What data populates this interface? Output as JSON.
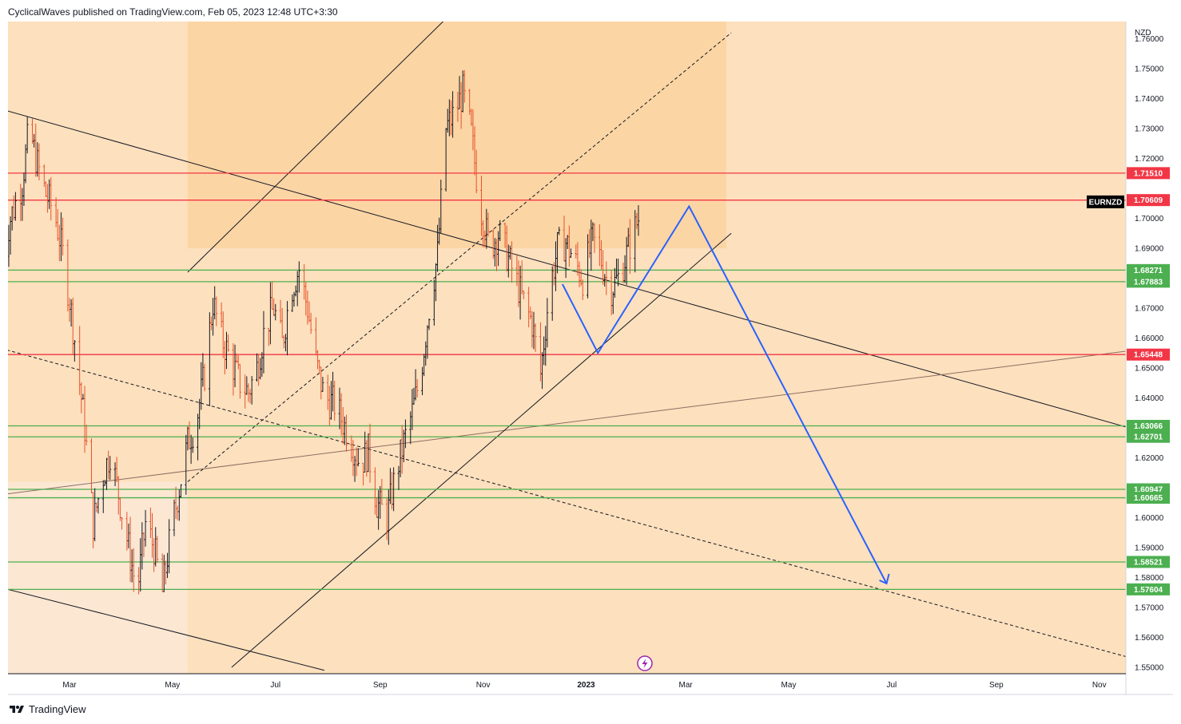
{
  "header": {
    "text": "CyclicalWaves published on TradingView.com, Feb 05, 2023 12:48 UTC+3:30"
  },
  "footer": {
    "brand": "TradingView",
    "logo_icon": "tradingview-logo-icon"
  },
  "chart_data": {
    "type": "candlestick",
    "symbol": "EURNZD",
    "currency": "NZD",
    "y_axis": {
      "min": 1.55,
      "max": 1.76,
      "ticks": [
        "1.55000",
        "1.56000",
        "1.57000",
        "1.58000",
        "1.59000",
        "1.60000",
        "1.62000",
        "1.64000",
        "1.65000",
        "1.66000",
        "1.67000",
        "1.69000",
        "1.70000",
        "1.72000",
        "1.73000",
        "1.74000",
        "1.75000",
        "1.76000"
      ]
    },
    "x_axis": {
      "ticks": [
        "Mar",
        "May",
        "Jul",
        "Sep",
        "Nov",
        "2023",
        "Mar",
        "May",
        "Jul",
        "Sep",
        "Nov"
      ],
      "tick_years": [
        2022,
        2022,
        2022,
        2022,
        2022,
        2023,
        2023,
        2023,
        2023,
        2023,
        2023
      ],
      "tick_months": [
        3,
        5,
        7,
        9,
        11,
        1,
        3,
        5,
        7,
        9,
        11
      ]
    },
    "resistance_levels": [
      {
        "price": 1.7151,
        "label": "1.71510"
      },
      {
        "price": 1.70609,
        "label": "1.70609"
      },
      {
        "price": 1.65448,
        "label": "1.65448"
      }
    ],
    "support_levels": [
      {
        "price": 1.68271,
        "label": "1.68271"
      },
      {
        "price": 1.67883,
        "label": "1.67883"
      },
      {
        "price": 1.63066,
        "label": "1.63066"
      },
      {
        "price": 1.62701,
        "label": "1.62701"
      },
      {
        "price": 1.60947,
        "label": "1.60947"
      },
      {
        "price": 1.60665,
        "label": "1.60665"
      },
      {
        "price": 1.58521,
        "label": "1.58521"
      },
      {
        "price": 1.57604,
        "label": "1.57604"
      }
    ],
    "symbol_label_price": 1.7055,
    "close_series": [
      [
        "2022-01-20",
        1.688
      ],
      [
        "2022-01-25",
        1.7
      ],
      [
        "2022-02-01",
        1.712
      ],
      [
        "2022-02-05",
        1.73
      ],
      [
        "2022-02-10",
        1.718
      ],
      [
        "2022-02-15",
        1.708
      ],
      [
        "2022-02-20",
        1.702
      ],
      [
        "2022-02-25",
        1.688
      ],
      [
        "2022-03-01",
        1.673
      ],
      [
        "2022-03-05",
        1.655
      ],
      [
        "2022-03-10",
        1.63
      ],
      [
        "2022-03-15",
        1.598
      ],
      [
        "2022-03-20",
        1.612
      ],
      [
        "2022-03-25",
        1.622
      ],
      [
        "2022-03-30",
        1.608
      ],
      [
        "2022-04-05",
        1.59
      ],
      [
        "2022-04-10",
        1.575
      ],
      [
        "2022-04-15",
        1.598
      ],
      [
        "2022-04-20",
        1.59
      ],
      [
        "2022-04-25",
        1.575
      ],
      [
        "2022-04-30",
        1.595
      ],
      [
        "2022-05-05",
        1.61
      ],
      [
        "2022-05-10",
        1.625
      ],
      [
        "2022-05-15",
        1.632
      ],
      [
        "2022-05-20",
        1.648
      ],
      [
        "2022-05-25",
        1.672
      ],
      [
        "2022-05-30",
        1.66
      ],
      [
        "2022-06-05",
        1.652
      ],
      [
        "2022-06-10",
        1.645
      ],
      [
        "2022-06-15",
        1.642
      ],
      [
        "2022-06-20",
        1.65
      ],
      [
        "2022-06-25",
        1.664
      ],
      [
        "2022-06-30",
        1.67
      ],
      [
        "2022-07-05",
        1.658
      ],
      [
        "2022-07-10",
        1.676
      ],
      [
        "2022-07-15",
        1.683
      ],
      [
        "2022-07-20",
        1.67
      ],
      [
        "2022-07-25",
        1.652
      ],
      [
        "2022-07-30",
        1.64
      ],
      [
        "2022-08-05",
        1.638
      ],
      [
        "2022-08-10",
        1.632
      ],
      [
        "2022-08-15",
        1.625
      ],
      [
        "2022-08-20",
        1.618
      ],
      [
        "2022-08-25",
        1.622
      ],
      [
        "2022-08-30",
        1.605
      ],
      [
        "2022-09-05",
        1.6
      ],
      [
        "2022-09-10",
        1.614
      ],
      [
        "2022-09-15",
        1.625
      ],
      [
        "2022-09-20",
        1.635
      ],
      [
        "2022-09-25",
        1.648
      ],
      [
        "2022-09-30",
        1.67
      ],
      [
        "2022-10-05",
        1.688
      ],
      [
        "2022-10-10",
        1.73
      ],
      [
        "2022-10-15",
        1.735
      ],
      [
        "2022-10-20",
        1.742
      ],
      [
        "2022-10-25",
        1.728
      ],
      [
        "2022-10-30",
        1.705
      ],
      [
        "2022-11-05",
        1.69
      ],
      [
        "2022-11-10",
        1.695
      ],
      [
        "2022-11-15",
        1.688
      ],
      [
        "2022-11-20",
        1.68
      ],
      [
        "2022-11-25",
        1.672
      ],
      [
        "2022-11-30",
        1.665
      ],
      [
        "2022-12-05",
        1.648
      ],
      [
        "2022-12-10",
        1.675
      ],
      [
        "2022-12-15",
        1.69
      ],
      [
        "2022-12-20",
        1.692
      ],
      [
        "2022-12-25",
        1.686
      ],
      [
        "2022-12-30",
        1.68
      ],
      [
        "2023-01-05",
        1.693
      ],
      [
        "2023-01-10",
        1.686
      ],
      [
        "2023-01-15",
        1.676
      ],
      [
        "2023-01-20",
        1.68
      ],
      [
        "2023-01-25",
        1.688
      ],
      [
        "2023-02-01",
        1.7
      ]
    ],
    "projection_path": [
      [
        "2022-12-18",
        1.678
      ],
      [
        "2023-01-08",
        1.655
      ],
      [
        "2023-03-03",
        1.704
      ],
      [
        "2023-06-28",
        1.578
      ]
    ],
    "trend_lines": {
      "outer_descending": [
        [
          "2022-01-10",
          1.738
        ],
        [
          "2023-12-20",
          1.625
        ]
      ],
      "inner_descending_dashed": [
        [
          "2022-01-10",
          1.658
        ],
        [
          "2023-12-10",
          1.55
        ]
      ],
      "lower_descending": [
        [
          "2022-01-10",
          1.578
        ],
        [
          "2022-07-30",
          1.549
        ]
      ],
      "rising_flat": [
        [
          "2022-01-10",
          1.607
        ],
        [
          "2023-12-20",
          1.658
        ]
      ],
      "channel_upper": [
        [
          "2022-05-10",
          1.682
        ],
        [
          "2022-10-25",
          1.775
        ]
      ],
      "channel_mid_dashed": [
        [
          "2022-05-10",
          1.612
        ],
        [
          "2023-03-28",
          1.762
        ]
      ],
      "channel_lower": [
        [
          "2022-06-05",
          1.55
        ],
        [
          "2023-03-28",
          1.695
        ]
      ]
    },
    "zones": {
      "outer": {
        "from": "2022-01-10",
        "to": "2023-12-31"
      },
      "channel": {
        "from": "2022-05-10",
        "to": "2023-03-25"
      }
    },
    "grid": false,
    "colors": {
      "up": "#131722",
      "down": "#e5532d",
      "resistance": "#f23645",
      "support": "#4caf50",
      "projection": "#2962ff",
      "background": "#fde0bd",
      "channel_zone": "#fcd2a0",
      "zone_fade": "#fbe7d2",
      "symbol_label_bg": "#000000"
    }
  },
  "dividend_icon": "lightning-icon"
}
